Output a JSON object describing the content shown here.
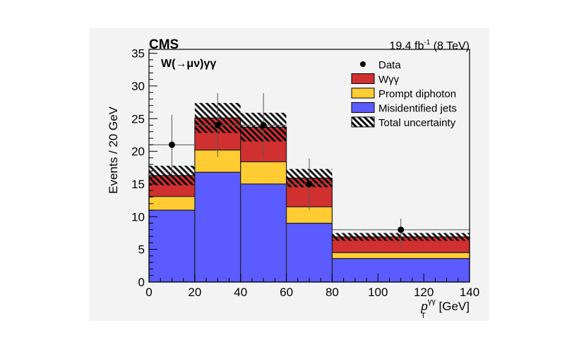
{
  "chart_data": {
    "type": "bar",
    "stacked": true,
    "experiment_label": "CMS",
    "lumi_label": "19.4 fb",
    "lumi_sup": "-1",
    "lumi_energy": " (8 TeV)",
    "channel_label": "W(→μν)γγ",
    "ylabel": "Events / 20 GeV",
    "xlabel_main": "p",
    "xlabel_sub": "T",
    "xlabel_sup": "γγ",
    "xlabel_unit": " [GeV]",
    "xlim": [
      0,
      140
    ],
    "ylim": [
      0,
      35.6
    ],
    "xticks": [
      0,
      20,
      40,
      60,
      80,
      100,
      120,
      140
    ],
    "yticks": [
      0,
      5,
      10,
      15,
      20,
      25,
      30,
      35
    ],
    "grid": false,
    "legend_position": "top-right",
    "bin_edges": [
      0,
      20,
      40,
      60,
      80,
      140
    ],
    "series": [
      {
        "name": "Misidentified jets",
        "color": "#5b5bff",
        "values": [
          11.0,
          16.8,
          15.0,
          9.0,
          3.6
        ]
      },
      {
        "name": "Prompt diphoton",
        "color": "#ffcc33",
        "values": [
          2.1,
          3.4,
          3.4,
          2.5,
          0.9
        ]
      },
      {
        "name": "Wγγ",
        "color": "#d03030",
        "values": [
          3.2,
          4.9,
          5.3,
          4.4,
          2.4
        ]
      }
    ],
    "uncertainty": {
      "name": "Total uncertainty",
      "values": [
        1.5,
        2.3,
        2.2,
        1.4,
        0.6
      ]
    },
    "data": {
      "name": "Data",
      "x": [
        10,
        30,
        50,
        70,
        110
      ],
      "y": [
        21,
        24,
        24,
        15,
        8
      ],
      "xerr": [
        10,
        10,
        10,
        10,
        30
      ],
      "yerr_low": [
        4.5,
        4.9,
        4.9,
        3.9,
        2.8
      ],
      "yerr_high": [
        4.6,
        4.9,
        4.9,
        3.9,
        1.7
      ]
    },
    "legend": [
      {
        "label": "Data",
        "kind": "marker"
      },
      {
        "label": "Wγγ",
        "kind": "fill",
        "color": "#d03030"
      },
      {
        "label": "Prompt diphoton",
        "kind": "fill",
        "color": "#ffcc33"
      },
      {
        "label": "Misidentified jets",
        "kind": "fill",
        "color": "#5b5bff"
      },
      {
        "label": "Total uncertainty",
        "kind": "hatch"
      }
    ]
  }
}
